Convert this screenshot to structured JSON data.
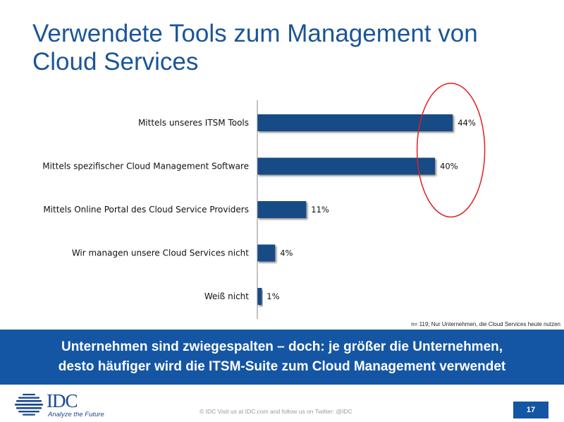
{
  "slide": {
    "title": "Verwendete Tools zum Management von Cloud Services",
    "footnote": "n= 119; Nur Unternehmen, die Cloud Services heute nutzen",
    "banner_line1": "Unternehmen sind zwiegespalten – doch: je größer die Unternehmen,",
    "banner_line2": "desto häufiger wird die ITSM-Suite zum Cloud Management verwendet",
    "logo_text": "IDC",
    "logo_tagline": "Analyze the Future",
    "copyright": "© IDC   Visit us at IDC.com and follow us on Twitter: @IDC",
    "page_number": "17"
  },
  "colors": {
    "bar": "#124b86",
    "highlight": "#e02020",
    "banner": "#1456a4",
    "title": "#1b5596"
  },
  "chart_data": {
    "type": "bar",
    "orientation": "horizontal",
    "categories": [
      "Mittels unseres ITSM Tools",
      "Mittels spezifischer Cloud Management Software",
      "Mittels Online Portal des Cloud Service Providers",
      "Wir managen unsere Cloud Services nicht",
      "Weiß nicht"
    ],
    "values": [
      44,
      40,
      11,
      4,
      1
    ],
    "value_labels": [
      "44%",
      "40%",
      "11%",
      "4%",
      "1%"
    ],
    "xlim": [
      0,
      50
    ],
    "unit": "%",
    "grid": false,
    "highlighted_categories": [
      0,
      1
    ]
  }
}
